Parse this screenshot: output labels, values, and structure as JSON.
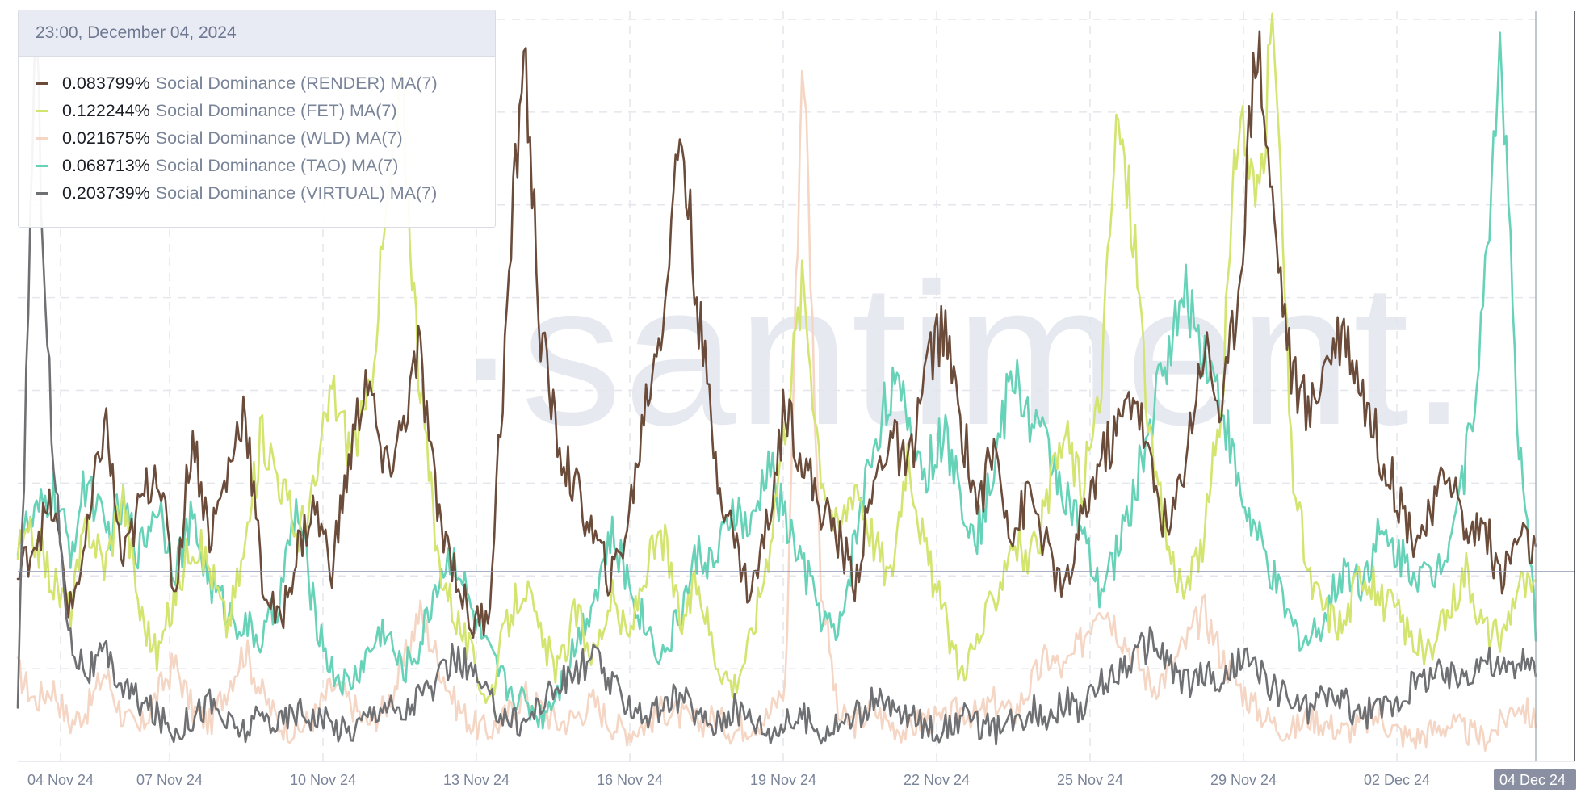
{
  "tooltip": {
    "date": "23:00, December 04, 2024",
    "rows": [
      {
        "value": "0.083799%",
        "label": "Social Dominance (RENDER) MA(7)",
        "color": "#6b4c3b"
      },
      {
        "value": "0.122244%",
        "label": "Social Dominance (FET) MA(7)",
        "color": "#d3e46f"
      },
      {
        "value": "0.021675%",
        "label": "Social Dominance (WLD) MA(7)",
        "color": "#f5d6c4"
      },
      {
        "value": "0.068713%",
        "label": "Social Dominance (TAO) MA(7)",
        "color": "#66d2b7"
      },
      {
        "value": "0.203739%",
        "label": "Social Dominance (VIRTUAL) MA(7)",
        "color": "#6f7073"
      }
    ]
  },
  "watermark": "·santiment.",
  "chart_data": {
    "type": "line",
    "x_ticks": [
      "04 Nov 24",
      "07 Nov 24",
      "10 Nov 24",
      "13 Nov 24",
      "16 Nov 24",
      "19 Nov 24",
      "22 Nov 24",
      "25 Nov 24",
      "29 Nov 24",
      "02 Dec 24"
    ],
    "cursor_label": "04 Dec 24",
    "x_range": [
      "03 Nov 24",
      "04 Dec 24"
    ],
    "grid": true,
    "series": [
      {
        "name": "Social Dominance (WLD) MA(7)",
        "color": "#f5d6c4",
        "ylim": [
          0,
          1.0
        ],
        "values": [
          0.12,
          0.08,
          0.1,
          0.05,
          0.07,
          0.12,
          0.06,
          0.04,
          0.09,
          0.13,
          0.07,
          0.05,
          0.1,
          0.15,
          0.09,
          0.05,
          0.04,
          0.06,
          0.1,
          0.08,
          0.05,
          0.07,
          0.12,
          0.2,
          0.14,
          0.08,
          0.05,
          0.04,
          0.06,
          0.09,
          0.07,
          0.05,
          0.06,
          0.08,
          0.05,
          0.04,
          0.05,
          0.07,
          0.06,
          0.05,
          0.06,
          0.04,
          0.05,
          0.06,
          0.1,
          0.98,
          0.25,
          0.06,
          0.05,
          0.07,
          0.05,
          0.04,
          0.06,
          0.05,
          0.07,
          0.06,
          0.08,
          0.06,
          0.1,
          0.14,
          0.12,
          0.16,
          0.22,
          0.18,
          0.14,
          0.1,
          0.12,
          0.16,
          0.2,
          0.14,
          0.1,
          0.07,
          0.05,
          0.04,
          0.06,
          0.05,
          0.04,
          0.05,
          0.06,
          0.04,
          0.03,
          0.04,
          0.05,
          0.04,
          0.03,
          0.05,
          0.08,
          0.05
        ]
      },
      {
        "name": "Social Dominance (TAO) MA(7)",
        "color": "#66d2b7",
        "ylim": [
          0,
          1.0
        ],
        "values": [
          0.3,
          0.32,
          0.36,
          0.28,
          0.38,
          0.3,
          0.34,
          0.28,
          0.35,
          0.26,
          0.32,
          0.24,
          0.2,
          0.18,
          0.16,
          0.22,
          0.34,
          0.2,
          0.12,
          0.1,
          0.14,
          0.18,
          0.12,
          0.15,
          0.24,
          0.28,
          0.2,
          0.14,
          0.1,
          0.08,
          0.06,
          0.1,
          0.16,
          0.22,
          0.3,
          0.24,
          0.18,
          0.14,
          0.2,
          0.28,
          0.26,
          0.34,
          0.3,
          0.4,
          0.32,
          0.26,
          0.2,
          0.16,
          0.3,
          0.42,
          0.5,
          0.46,
          0.38,
          0.44,
          0.36,
          0.3,
          0.4,
          0.52,
          0.46,
          0.42,
          0.36,
          0.3,
          0.22,
          0.28,
          0.36,
          0.46,
          0.56,
          0.62,
          0.55,
          0.48,
          0.36,
          0.3,
          0.24,
          0.18,
          0.16,
          0.2,
          0.26,
          0.24,
          0.3,
          0.28,
          0.26,
          0.24,
          0.3,
          0.4,
          0.6,
          0.98,
          0.42,
          0.18
        ]
      },
      {
        "name": "Social Dominance (FET) MA(7)",
        "color": "#d3e46f",
        "ylim": [
          0,
          1.0
        ],
        "values": [
          0.28,
          0.3,
          0.24,
          0.2,
          0.32,
          0.26,
          0.36,
          0.2,
          0.14,
          0.22,
          0.3,
          0.26,
          0.18,
          0.28,
          0.44,
          0.38,
          0.3,
          0.36,
          0.5,
          0.42,
          0.46,
          0.7,
          0.9,
          0.52,
          0.28,
          0.2,
          0.14,
          0.08,
          0.18,
          0.24,
          0.16,
          0.12,
          0.2,
          0.14,
          0.22,
          0.16,
          0.26,
          0.3,
          0.18,
          0.24,
          0.14,
          0.1,
          0.16,
          0.28,
          0.46,
          0.64,
          0.4,
          0.3,
          0.38,
          0.3,
          0.24,
          0.42,
          0.28,
          0.2,
          0.12,
          0.16,
          0.22,
          0.3,
          0.26,
          0.34,
          0.44,
          0.36,
          0.48,
          0.86,
          0.7,
          0.4,
          0.28,
          0.22,
          0.3,
          0.48,
          0.88,
          0.74,
          0.98,
          0.4,
          0.24,
          0.2,
          0.18,
          0.26,
          0.22,
          0.2,
          0.16,
          0.14,
          0.2,
          0.26,
          0.18,
          0.16,
          0.24,
          0.22
        ]
      },
      {
        "name": "Social Dominance (RENDER) MA(7)",
        "color": "#6b4c3b",
        "ylim": [
          0,
          1.0
        ],
        "values": [
          0.24,
          0.3,
          0.34,
          0.2,
          0.3,
          0.46,
          0.26,
          0.34,
          0.4,
          0.22,
          0.44,
          0.3,
          0.38,
          0.48,
          0.24,
          0.18,
          0.28,
          0.34,
          0.26,
          0.4,
          0.52,
          0.38,
          0.44,
          0.55,
          0.34,
          0.26,
          0.18,
          0.2,
          0.58,
          0.96,
          0.56,
          0.42,
          0.36,
          0.3,
          0.24,
          0.32,
          0.48,
          0.6,
          0.85,
          0.6,
          0.4,
          0.3,
          0.22,
          0.32,
          0.48,
          0.4,
          0.34,
          0.3,
          0.24,
          0.36,
          0.44,
          0.38,
          0.52,
          0.58,
          0.46,
          0.34,
          0.42,
          0.3,
          0.36,
          0.28,
          0.22,
          0.32,
          0.4,
          0.44,
          0.5,
          0.38,
          0.3,
          0.42,
          0.56,
          0.46,
          0.64,
          0.98,
          0.72,
          0.52,
          0.46,
          0.54,
          0.58,
          0.5,
          0.42,
          0.36,
          0.3,
          0.32,
          0.4,
          0.3,
          0.32,
          0.24,
          0.3,
          0.28
        ]
      },
      {
        "name": "Social Dominance (VIRTUAL) MA(7)",
        "color": "#6f7073",
        "ylim": [
          0,
          1.0
        ],
        "values": [
          0.06,
          0.98,
          0.4,
          0.16,
          0.12,
          0.14,
          0.1,
          0.08,
          0.06,
          0.04,
          0.06,
          0.08,
          0.05,
          0.04,
          0.06,
          0.05,
          0.07,
          0.06,
          0.05,
          0.04,
          0.06,
          0.08,
          0.06,
          0.09,
          0.1,
          0.14,
          0.12,
          0.08,
          0.06,
          0.05,
          0.08,
          0.1,
          0.12,
          0.14,
          0.1,
          0.08,
          0.06,
          0.07,
          0.09,
          0.06,
          0.05,
          0.07,
          0.06,
          0.04,
          0.05,
          0.06,
          0.04,
          0.05,
          0.06,
          0.08,
          0.07,
          0.06,
          0.05,
          0.04,
          0.06,
          0.05,
          0.04,
          0.05,
          0.07,
          0.06,
          0.08,
          0.07,
          0.1,
          0.12,
          0.14,
          0.16,
          0.13,
          0.1,
          0.12,
          0.1,
          0.14,
          0.12,
          0.1,
          0.08,
          0.07,
          0.09,
          0.08,
          0.06,
          0.07,
          0.08,
          0.1,
          0.12,
          0.11,
          0.12,
          0.14,
          0.12,
          0.13,
          0.12
        ]
      }
    ]
  }
}
